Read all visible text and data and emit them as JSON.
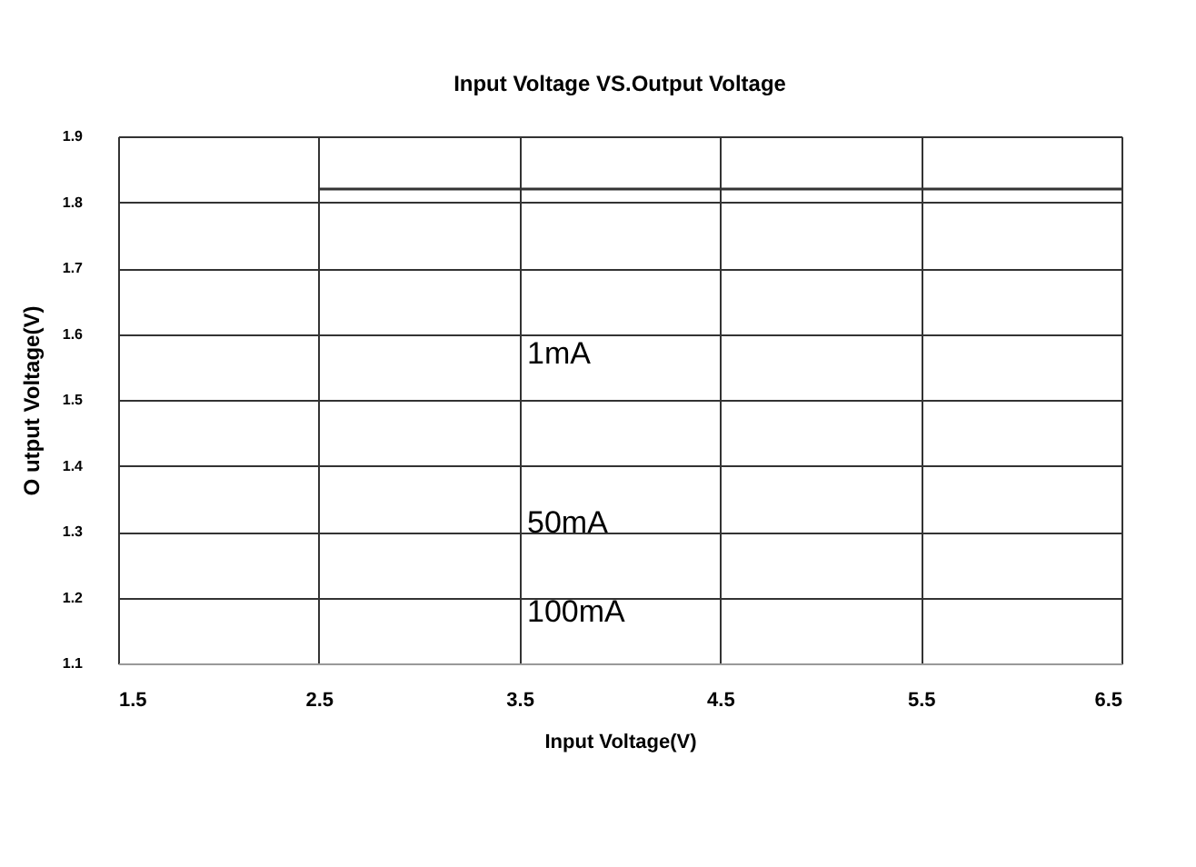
{
  "chart_data": {
    "type": "line",
    "title": "Input Voltage VS.Output Voltage",
    "xlabel": "Input Voltage(V)",
    "ylabel": "O utput Voltage(V)",
    "x": [
      2.5,
      6.5
    ],
    "series": [
      {
        "color": "#333333",
        "values": [
          1.82,
          1.82
        ]
      }
    ],
    "xlim": [
      1.5,
      6.5
    ],
    "xticks": [
      1.5,
      2.5,
      3.5,
      4.5,
      5.5,
      6.5
    ],
    "ylim": [
      1.1,
      1.9
    ],
    "yticks": [
      1.1,
      1.2,
      1.3,
      1.4,
      1.5,
      1.6,
      1.7,
      1.8,
      1.9
    ],
    "grid": true,
    "marker": "none",
    "line_style": "solid",
    "annotations": [
      "1mA",
      "50mA",
      "100mA"
    ]
  }
}
